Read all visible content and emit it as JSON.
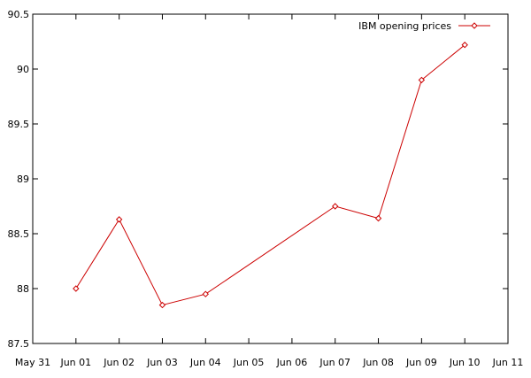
{
  "chart_data": {
    "type": "line",
    "title": "",
    "xlabel": "",
    "ylabel": "",
    "x_ticks": [
      "May 31",
      "Jun 01",
      "Jun 02",
      "Jun 03",
      "Jun 04",
      "Jun 05",
      "Jun 06",
      "Jun 07",
      "Jun 08",
      "Jun 09",
      "Jun 10",
      "Jun 11"
    ],
    "y_ticks": [
      "87.5",
      "88",
      "88.5",
      "89",
      "89.5",
      "90",
      "90.5"
    ],
    "ylim": [
      87.5,
      90.5
    ],
    "xlim": [
      "2004-05-31",
      "2004-06-11"
    ],
    "grid": false,
    "legend_position": "top-right",
    "series": [
      {
        "name": "IBM opening prices",
        "color": "#cc0000",
        "marker": "diamond",
        "points": [
          {
            "x": "Jun 01",
            "y": 88.0
          },
          {
            "x": "Jun 02",
            "y": 88.63
          },
          {
            "x": "Jun 03",
            "y": 87.85
          },
          {
            "x": "Jun 04",
            "y": 87.95
          },
          {
            "x": "Jun 07",
            "y": 88.75
          },
          {
            "x": "Jun 08",
            "y": 88.64
          },
          {
            "x": "Jun 09",
            "y": 89.9
          },
          {
            "x": "Jun 10",
            "y": 90.22
          }
        ]
      }
    ]
  }
}
